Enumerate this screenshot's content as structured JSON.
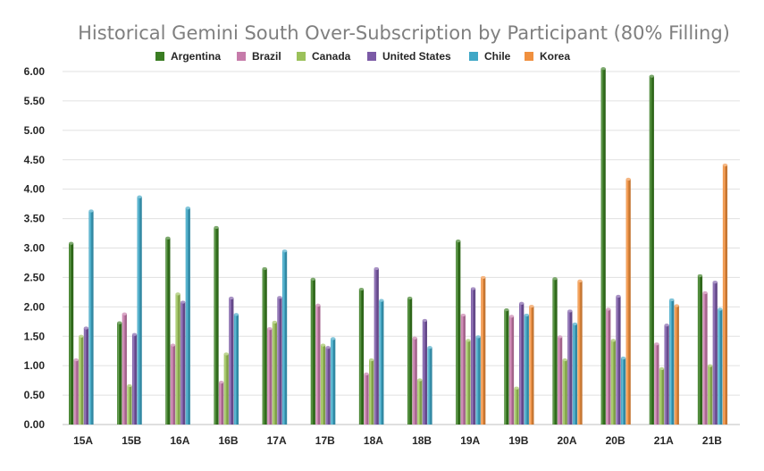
{
  "colors": {
    "Argentina": "#3a7d22",
    "Brazil": "#c67baa",
    "Canada": "#9bc15a",
    "United States": "#7b5aa6",
    "Chile": "#3fa7c6",
    "Korea": "#f0903f"
  },
  "chart_data": {
    "type": "bar",
    "title": "Historical Gemini South Over-Subscription by Participant (80% Filling)",
    "xlabel": "",
    "ylabel": "",
    "ylim": [
      0,
      6.0
    ],
    "yticks": [
      "0.00",
      "0.50",
      "1.00",
      "1.50",
      "2.00",
      "2.50",
      "3.00",
      "3.50",
      "4.00",
      "4.50",
      "5.00",
      "5.50",
      "6.00"
    ],
    "grid": true,
    "legend": "top",
    "categories": [
      "15A",
      "15B",
      "16A",
      "16B",
      "17A",
      "17B",
      "18A",
      "18B",
      "19A",
      "19B",
      "20A",
      "20B",
      "21A",
      "21B"
    ],
    "series": [
      {
        "name": "Argentina",
        "values": [
          3.08,
          1.73,
          3.17,
          3.35,
          2.65,
          2.47,
          2.3,
          2.15,
          3.12,
          1.95,
          2.48,
          6.05,
          5.92,
          2.53
        ]
      },
      {
        "name": "Brazil",
        "values": [
          1.1,
          1.88,
          1.35,
          0.72,
          1.63,
          2.03,
          0.86,
          1.47,
          1.86,
          1.84,
          1.49,
          1.96,
          1.37,
          2.24
        ]
      },
      {
        "name": "Canada",
        "values": [
          1.5,
          0.66,
          2.22,
          1.2,
          1.74,
          1.35,
          1.1,
          0.76,
          1.43,
          0.62,
          1.1,
          1.43,
          0.95,
          1.0
        ]
      },
      {
        "name": "United States",
        "values": [
          1.64,
          1.53,
          2.08,
          2.15,
          2.16,
          1.31,
          2.65,
          1.77,
          2.31,
          2.06,
          1.93,
          2.18,
          1.69,
          2.42
        ]
      },
      {
        "name": "Chile",
        "values": [
          3.63,
          3.87,
          3.68,
          1.87,
          2.95,
          1.46,
          2.11,
          1.31,
          1.49,
          1.86,
          1.71,
          1.13,
          2.12,
          1.96
        ]
      },
      {
        "name": "Korea",
        "values": [
          null,
          null,
          null,
          null,
          null,
          null,
          null,
          null,
          2.5,
          2.01,
          2.44,
          4.17,
          2.02,
          4.41
        ]
      }
    ]
  }
}
